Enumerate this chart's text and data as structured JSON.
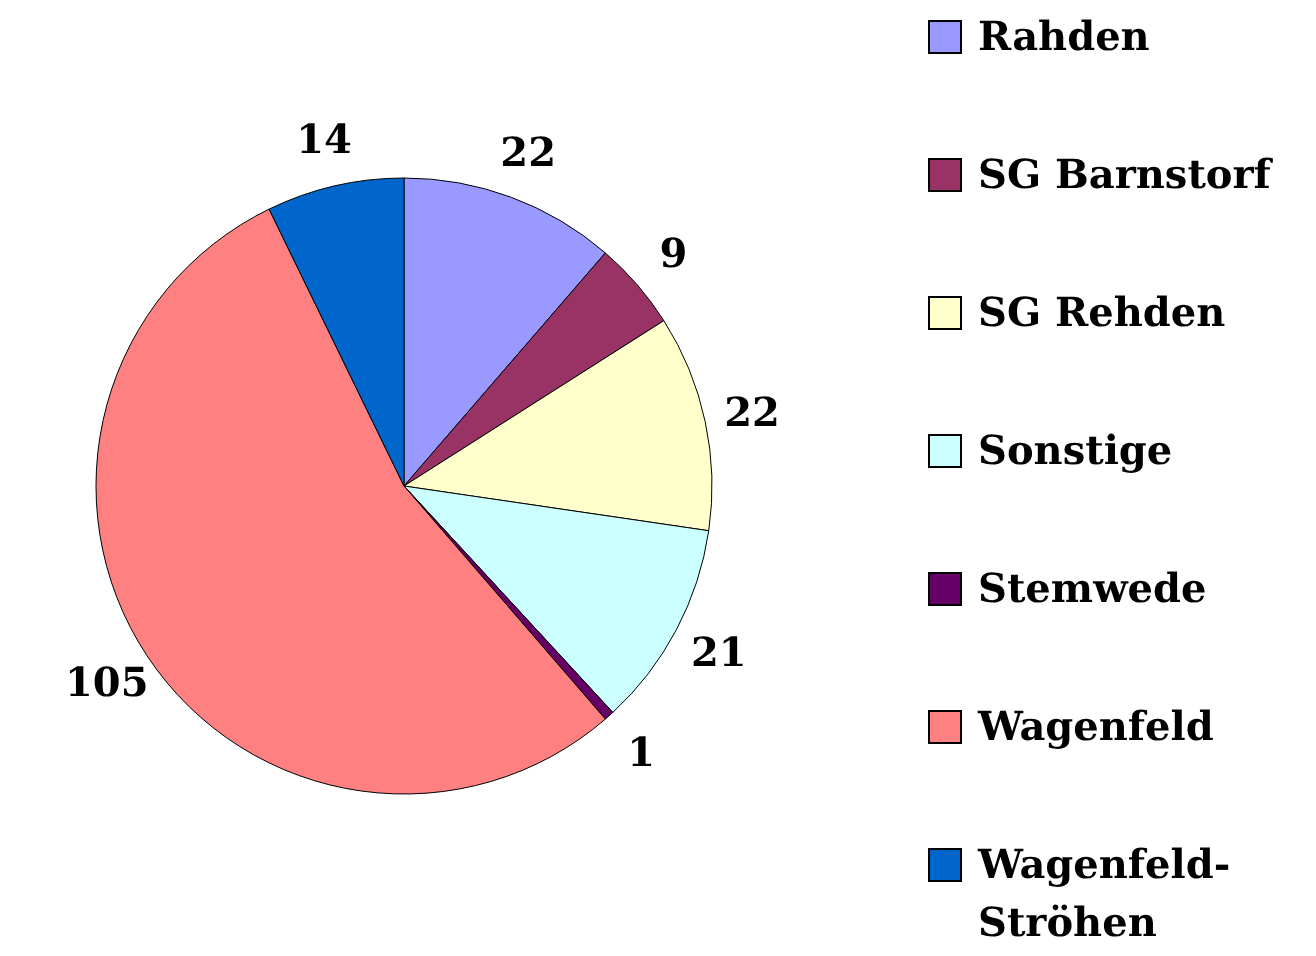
{
  "chart_data": {
    "type": "pie",
    "categories": [
      "Rahden",
      "SG Barnstorf",
      "SG Rehden",
      "Sonstige",
      "Stemwede",
      "Wagenfeld",
      "Wagenfeld-Ströhen"
    ],
    "values": [
      22,
      9,
      22,
      21,
      1,
      105,
      14
    ],
    "colors": [
      "#9999ff",
      "#993366",
      "#ffffcc",
      "#ccffff",
      "#660066",
      "#ff8080",
      "#0066cc"
    ],
    "data_labels": true,
    "legend": "right"
  }
}
